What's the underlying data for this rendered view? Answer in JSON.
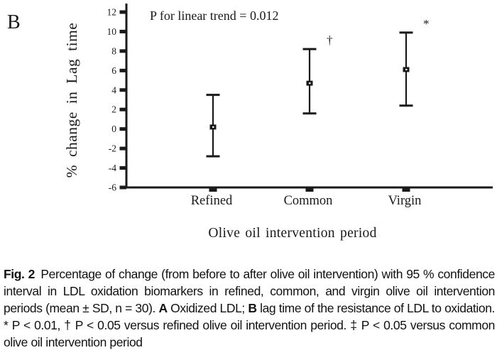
{
  "panel_label": "B",
  "colors": {
    "ink": "#1a1a1a",
    "background": "#ffffff"
  },
  "chart_data": {
    "type": "scatter",
    "subtype": "mean-with-95ci-error-bars",
    "title": "",
    "annotation": "P for linear trend = 0.012",
    "xlabel": "Olive oil intervention period",
    "ylabel": "% change in Lag time",
    "categories": [
      "Refined",
      "Common",
      "Virgin"
    ],
    "series": [
      {
        "name": "% change in lag time (mean with 95 % CI)",
        "means": [
          0.2,
          4.7,
          6.1
        ],
        "ci_low": [
          -2.8,
          1.6,
          2.4
        ],
        "ci_high": [
          3.5,
          8.2,
          9.9
        ],
        "significance": [
          "",
          "†",
          "*"
        ]
      }
    ],
    "ylim": [
      -6,
      12
    ],
    "yticks": [
      12,
      10,
      8,
      6,
      4,
      2,
      0,
      -2,
      -4,
      -6
    ],
    "grid": false,
    "legend": "none",
    "marker": "filled-square",
    "error_bars": "95 % confidence interval"
  },
  "caption": {
    "segments": [
      {
        "text": "Fig. 2",
        "bold": true
      },
      {
        "text": " Percentage of change (from before to after olive oil intervention) with 95 % confidence interval in LDL oxidation biomarkers in refined, common, and virgin olive oil intervention periods (mean ± SD, n = 30). ",
        "bold": false
      },
      {
        "text": "A",
        "bold": true
      },
      {
        "text": " Oxidized LDL; ",
        "bold": false
      },
      {
        "text": "B",
        "bold": true
      },
      {
        "text": " lag time of the resistance of LDL to oxidation. * P < 0.01, † P < 0.05 versus refined olive oil intervention period. ‡ P < 0.05 versus common olive oil intervention period",
        "bold": false
      }
    ]
  }
}
